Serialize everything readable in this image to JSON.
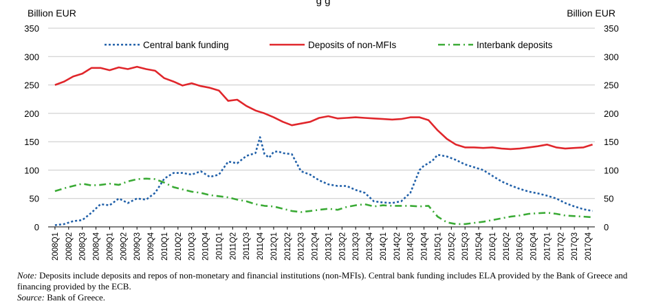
{
  "chart_data": {
    "type": "line",
    "title_fragment": "g     g",
    "y_unit_left": "Billion EUR",
    "y_unit_right": "Billion EUR",
    "ylim": [
      0,
      350
    ],
    "yticks": [
      0,
      50,
      100,
      150,
      200,
      250,
      300,
      350
    ],
    "grid": true,
    "legend_position": "top",
    "categories": [
      "2008Q1",
      "2008Q2",
      "2008Q3",
      "2008Q4",
      "2009Q1",
      "2009Q2",
      "2009Q3",
      "2009Q4",
      "2010Q1",
      "2010Q2",
      "2010Q3",
      "2010Q4",
      "2011Q1",
      "2011Q2",
      "2011Q3",
      "2011Q4",
      "2012Q1",
      "2012Q2",
      "2012Q3",
      "2012Q4",
      "2013Q1",
      "2013Q2",
      "2013Q3",
      "2013Q4",
      "2014Q1",
      "2014Q2",
      "2014Q3",
      "2014Q4",
      "2015Q1",
      "2015Q2",
      "2015Q3",
      "2015Q4",
      "2016Q1",
      "2016Q2",
      "2016Q3",
      "2016Q4",
      "2017Q1",
      "2017Q2",
      "2017Q3",
      "2017Q4"
    ],
    "series": [
      {
        "name": "Central bank funding",
        "color": "#1f5fa8",
        "style": "dotted",
        "x": [
          0,
          0.67,
          1.33,
          2,
          2.67,
          3.33,
          4,
          4.67,
          5.33,
          6,
          6.67,
          7.33,
          8,
          8.67,
          9.33,
          10,
          10.67,
          11.33,
          12,
          12.67,
          13.33,
          14,
          14.67,
          15,
          15.33,
          15.67,
          16,
          16.33,
          16.67,
          17.33,
          18,
          18.67,
          19.33,
          20,
          20.67,
          21.33,
          22,
          22.67,
          23.33,
          24,
          24.67,
          25.33,
          26,
          26.67,
          27,
          27.33,
          27.67,
          28,
          28.67,
          29.33,
          30,
          30.67,
          31.33,
          32,
          32.67,
          33.33,
          34,
          34.67,
          35.33,
          36,
          36.67,
          37.33,
          38,
          38.67,
          39.33
        ],
        "y": [
          3,
          5,
          10,
          12,
          25,
          40,
          38,
          50,
          42,
          50,
          48,
          60,
          85,
          95,
          95,
          92,
          98,
          88,
          92,
          115,
          112,
          125,
          130,
          158,
          128,
          122,
          132,
          133,
          130,
          128,
          98,
          92,
          82,
          75,
          72,
          72,
          65,
          60,
          45,
          43,
          42,
          45,
          60,
          100,
          108,
          112,
          118,
          127,
          124,
          118,
          110,
          105,
          100,
          90,
          80,
          73,
          67,
          62,
          59,
          55,
          50,
          42,
          36,
          31,
          28
        ],
        "x_unit": "quarter index (0 = 2008Q1)"
      },
      {
        "name": "Deposits of non-MFIs",
        "color": "#e0262b",
        "style": "solid",
        "x": [
          0,
          0.67,
          1.33,
          2,
          2.67,
          3.33,
          4,
          4.67,
          5.33,
          6,
          6.67,
          7.33,
          8,
          8.67,
          9.33,
          10,
          10.67,
          11.33,
          12,
          12.67,
          13.33,
          14,
          14.67,
          15.33,
          16,
          16.67,
          17.33,
          18,
          18.67,
          19.33,
          20,
          20.67,
          21.33,
          22,
          22.67,
          23.33,
          24,
          24.67,
          25.33,
          26,
          26.67,
          27.33,
          28,
          28.67,
          29.33,
          30,
          30.67,
          31.33,
          32,
          32.67,
          33.33,
          34,
          34.67,
          35.33,
          36,
          36.67,
          37.33,
          38,
          38.67,
          39.33
        ],
        "y": [
          250,
          256,
          265,
          270,
          280,
          280,
          276,
          281,
          278,
          282,
          278,
          275,
          262,
          256,
          249,
          253,
          248,
          245,
          240,
          222,
          224,
          213,
          205,
          200,
          193,
          185,
          179,
          182,
          185,
          192,
          195,
          191,
          192,
          193,
          192,
          191,
          190,
          189,
          190,
          193,
          193,
          188,
          170,
          155,
          145,
          140,
          140,
          139,
          140,
          138,
          137,
          138,
          140,
          142,
          145,
          140,
          138,
          139,
          140,
          145
        ]
      },
      {
        "name": "Interbank deposits",
        "color": "#3aaa35",
        "style": "dash-dot",
        "x": [
          0,
          0.67,
          1.33,
          2,
          2.67,
          3.33,
          4,
          4.67,
          5.33,
          6,
          6.67,
          7.33,
          8,
          8.67,
          9.33,
          10,
          10.67,
          11.33,
          12,
          12.67,
          13.33,
          14,
          14.67,
          15.33,
          16,
          16.67,
          17.33,
          18,
          18.67,
          19.33,
          20,
          20.67,
          21.33,
          22,
          22.67,
          23.33,
          24,
          24.67,
          25.33,
          26,
          26.67,
          27.33,
          28,
          28.67,
          29.33,
          30,
          30.67,
          31.33,
          32,
          32.67,
          33.33,
          34,
          34.67,
          35.33,
          36,
          36.67,
          37.33,
          38,
          38.67,
          39.33
        ],
        "y": [
          63,
          68,
          72,
          76,
          73,
          74,
          76,
          74,
          80,
          84,
          85,
          84,
          78,
          70,
          66,
          62,
          60,
          56,
          54,
          52,
          48,
          45,
          40,
          37,
          36,
          32,
          28,
          26,
          28,
          30,
          32,
          30,
          35,
          38,
          40,
          36,
          38,
          37,
          37,
          37,
          36,
          37,
          18,
          8,
          5,
          5,
          7,
          9,
          12,
          15,
          18,
          20,
          23,
          24,
          25,
          23,
          20,
          19,
          18,
          17
        ]
      }
    ]
  },
  "notes": {
    "note_label": "Note:",
    "note_text": "Deposits include deposits and repos of non-monetary and financial institutions (non-MFIs). Central bank funding includes ELA provided by the Bank of Greece and financing provided by the ECB.",
    "source_label": "Source:",
    "source_text": "Bank of Greece."
  }
}
